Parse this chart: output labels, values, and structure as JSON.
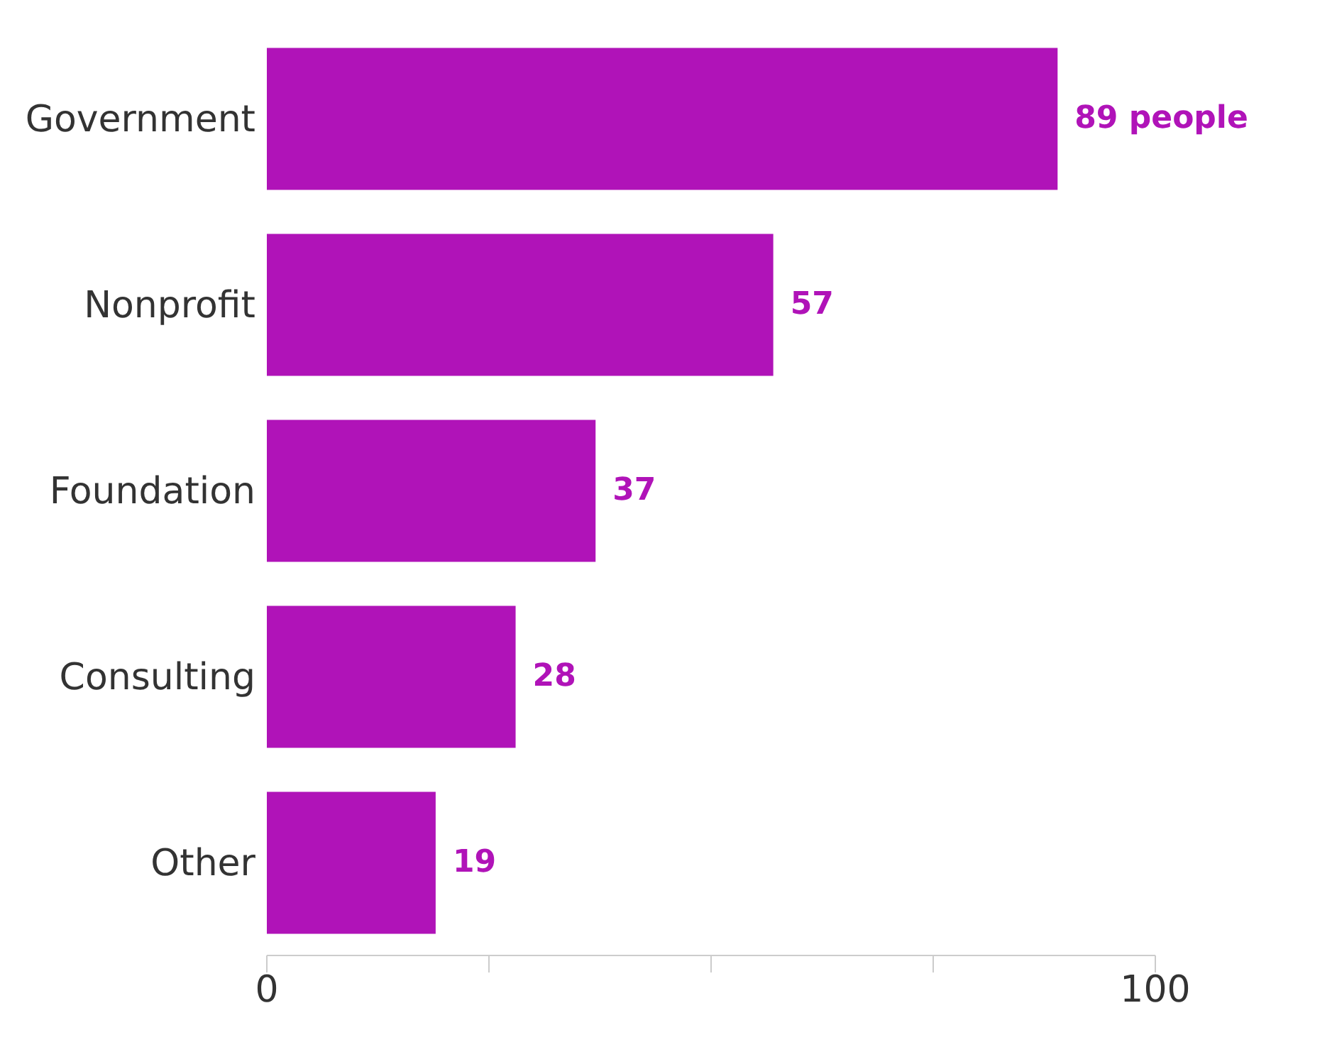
{
  "chart_data": {
    "type": "bar",
    "orientation": "horizontal",
    "categories": [
      "Government",
      "Nonprofit",
      "Foundation",
      "Consulting",
      "Other"
    ],
    "values": [
      89,
      57,
      37,
      28,
      19
    ],
    "value_labels": [
      "89 people",
      "57",
      "37",
      "28",
      "19"
    ],
    "color": "#b013b8",
    "xlim": [
      0,
      100
    ],
    "xticks": [
      0,
      {
        "value": 25,
        "label": null
      },
      {
        "value": 50,
        "label": null
      },
      {
        "value": 75,
        "label": null
      },
      100
    ],
    "grid": false,
    "legend": false
  }
}
